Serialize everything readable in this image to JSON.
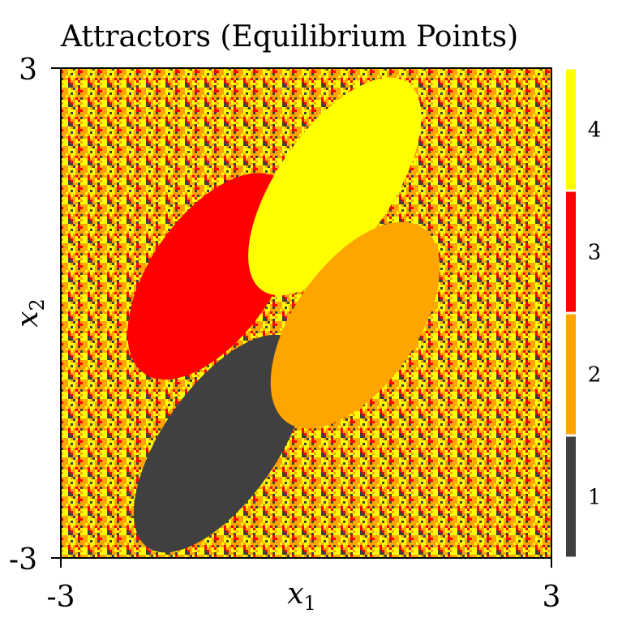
{
  "chart_data": {
    "type": "heatmap",
    "title": "Attractors (Equilibrium Points)",
    "xlabel": "x",
    "xlabel_sub": "1",
    "ylabel": "x",
    "ylabel_sub": "2",
    "xlim": [
      -3,
      3
    ],
    "ylim": [
      -3,
      3
    ],
    "x_ticks": [
      "-3",
      "3"
    ],
    "y_ticks": [
      "-3",
      "3"
    ],
    "legend": "colorbar-right",
    "colorbar": {
      "levels": [
        1,
        2,
        3,
        4
      ],
      "labels": [
        "1",
        "2",
        "3",
        "4"
      ],
      "colors": [
        "#404040",
        "#ffa500",
        "#ff0000",
        "#ffff00"
      ]
    },
    "basins": [
      {
        "attractor": 3,
        "shape": "ellipse",
        "center": [
          -1.15,
          0.45
        ],
        "semi_axes": [
          1.45,
          0.75
        ],
        "angle_deg": 55
      },
      {
        "attractor": 2,
        "shape": "ellipse",
        "center": [
          0.6,
          -0.15
        ],
        "semi_axes": [
          1.45,
          0.75
        ],
        "angle_deg": 55
      },
      {
        "attractor": 4,
        "shape": "lobe",
        "center": [
          0.35,
          1.55
        ],
        "semi_axes": [
          1.55,
          0.7
        ],
        "angle_deg": 55
      },
      {
        "attractor": 1,
        "shape": "lobe",
        "center": [
          -1.05,
          -1.6
        ],
        "semi_axes": [
          1.55,
          0.7
        ],
        "angle_deg": 55
      }
    ]
  }
}
